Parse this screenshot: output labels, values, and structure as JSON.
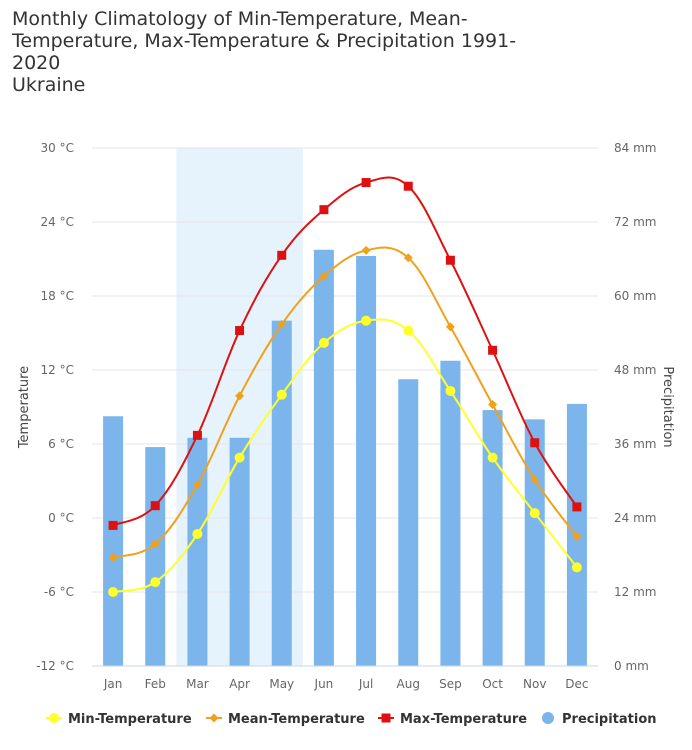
{
  "chart_data": {
    "type": "bar+line",
    "title": "Monthly Climatology of Min-Temperature, Mean-\nTemperature, Max-Temperature & Precipitation 1991-\n2020\nUkraine",
    "categories": [
      "Jan",
      "Feb",
      "Mar",
      "Apr",
      "May",
      "Jun",
      "Jul",
      "Aug",
      "Sep",
      "Oct",
      "Nov",
      "Dec"
    ],
    "y_left": {
      "label": "Temperature",
      "ticks": [
        "30 °C",
        "24 °C",
        "18 °C",
        "12 °C",
        "6 °C",
        "0 °C",
        "-6 °C",
        "-12 °C"
      ],
      "ylim": [
        -12,
        30
      ]
    },
    "y_right": {
      "label": "Precipitation",
      "ticks": [
        "84 mm",
        "72 mm",
        "60 mm",
        "48 mm",
        "36 mm",
        "24 mm",
        "12 mm",
        "0 mm"
      ],
      "ylim": [
        0,
        84
      ]
    },
    "highlight_band": {
      "from": "Mar",
      "to": "May"
    },
    "precipitation": {
      "name": "Precipitation",
      "color": "#7cb5ec",
      "values": [
        40.5,
        35.5,
        37,
        37,
        56,
        67.5,
        66.5,
        46.5,
        49.5,
        41.5,
        40,
        42.5
      ]
    },
    "series": [
      {
        "name": "Min-Temperature",
        "color": "#ffff2b",
        "marker": "circle",
        "values": [
          -6.0,
          -5.2,
          -1.3,
          4.9,
          10.0,
          14.2,
          16.0,
          15.2,
          10.3,
          4.9,
          0.4,
          -4.0
        ]
      },
      {
        "name": "Mean-Temperature",
        "color": "#f0a11c",
        "marker": "diamond",
        "values": [
          -3.2,
          -2.1,
          2.7,
          9.9,
          15.7,
          19.6,
          21.7,
          21.1,
          15.5,
          9.2,
          3.1,
          -1.5
        ]
      },
      {
        "name": "Max-Temperature",
        "color": "#dd1111",
        "marker": "square",
        "values": [
          -0.6,
          1.0,
          6.7,
          15.2,
          21.3,
          25.0,
          27.2,
          26.9,
          20.9,
          13.6,
          6.1,
          0.9
        ]
      }
    ],
    "legend": {
      "position": "bottom",
      "items": [
        "Min-Temperature",
        "Mean-Temperature",
        "Max-Temperature",
        "Precipitation"
      ]
    }
  }
}
